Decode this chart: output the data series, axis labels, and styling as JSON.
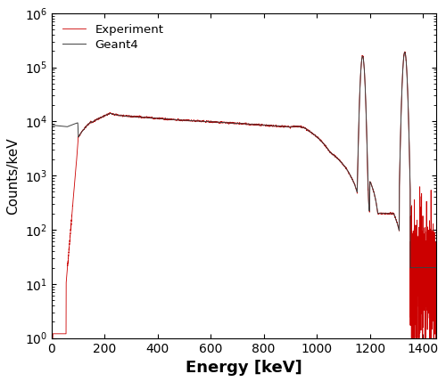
{
  "xlabel": "Energy [keV]",
  "ylabel": "Counts/keV",
  "xlim": [
    0,
    1450
  ],
  "ylim_log": [
    1.0,
    1000000.0
  ],
  "xticks": [
    0,
    200,
    400,
    600,
    800,
    1000,
    1200,
    1400
  ],
  "experiment_color": "#cc0000",
  "geant4_color": "#404040",
  "legend_labels": [
    "Experiment",
    "Geant4"
  ],
  "figsize": [
    5.0,
    4.29
  ],
  "dpi": 100
}
